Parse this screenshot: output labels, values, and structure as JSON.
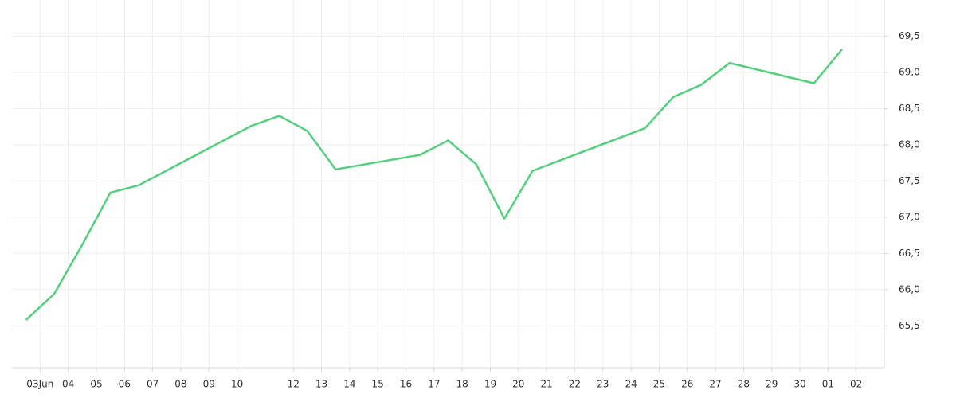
{
  "chart_data": {
    "type": "line",
    "x": [
      0,
      1,
      2,
      3,
      4,
      8,
      9,
      10,
      11,
      14,
      15,
      16,
      17,
      18,
      22,
      23,
      24,
      25,
      28,
      29
    ],
    "series": [
      {
        "color": "#52d17c",
        "values": [
          65.58,
          65.94,
          66.62,
          67.34,
          67.44,
          68.26,
          68.4,
          68.19,
          67.66,
          67.86,
          68.06,
          67.73,
          66.98,
          67.64,
          68.23,
          68.66,
          68.83,
          69.13,
          68.85,
          69.32
        ]
      }
    ],
    "xlim": [
      -0.5,
      30.5
    ],
    "xticks": [
      {
        "value": 0.5,
        "label": "03Jun"
      },
      {
        "value": 1.5,
        "label": "04"
      },
      {
        "value": 2.5,
        "label": "05"
      },
      {
        "value": 3.5,
        "label": "06"
      },
      {
        "value": 4.5,
        "label": "07"
      },
      {
        "value": 5.5,
        "label": "08"
      },
      {
        "value": 6.5,
        "label": "09"
      },
      {
        "value": 7.5,
        "label": "10"
      },
      {
        "value": 9.5,
        "label": "12"
      },
      {
        "value": 10.5,
        "label": "13"
      },
      {
        "value": 11.5,
        "label": "14"
      },
      {
        "value": 12.5,
        "label": "15"
      },
      {
        "value": 13.5,
        "label": "16"
      },
      {
        "value": 14.5,
        "label": "17"
      },
      {
        "value": 15.5,
        "label": "18"
      },
      {
        "value": 16.5,
        "label": "19"
      },
      {
        "value": 17.5,
        "label": "20"
      },
      {
        "value": 18.5,
        "label": "21"
      },
      {
        "value": 19.5,
        "label": "22"
      },
      {
        "value": 20.5,
        "label": "23"
      },
      {
        "value": 21.5,
        "label": "24"
      },
      {
        "value": 22.5,
        "label": "25"
      },
      {
        "value": 23.5,
        "label": "26"
      },
      {
        "value": 24.5,
        "label": "27"
      },
      {
        "value": 25.5,
        "label": "28"
      },
      {
        "value": 26.5,
        "label": "29"
      },
      {
        "value": 27.5,
        "label": "30"
      },
      {
        "value": 28.5,
        "label": "01"
      },
      {
        "value": 29.5,
        "label": "02"
      }
    ],
    "ylim": [
      64.92,
      70.0
    ],
    "yticks": [
      {
        "value": 65.5,
        "label": "65,5"
      },
      {
        "value": 66.0,
        "label": "66,0"
      },
      {
        "value": 66.5,
        "label": "66,5"
      },
      {
        "value": 67.0,
        "label": "67,0"
      },
      {
        "value": 67.5,
        "label": "67,5"
      },
      {
        "value": 68.0,
        "label": "68,0"
      },
      {
        "value": 68.5,
        "label": "68,5"
      },
      {
        "value": 69.0,
        "label": "69,0"
      },
      {
        "value": 69.5,
        "label": "69,5"
      }
    ],
    "grid": true
  }
}
